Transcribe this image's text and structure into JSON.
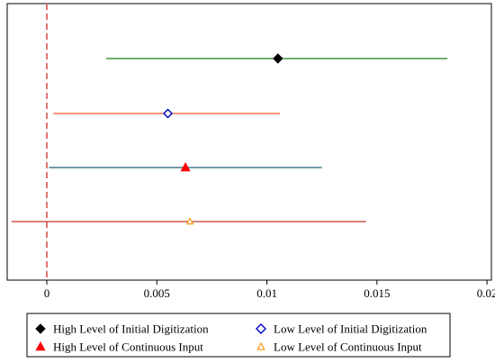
{
  "chart_data": {
    "type": "coefficient-plot",
    "title": "",
    "xlabel": "",
    "ylabel": "",
    "xlim": [
      -0.0018,
      0.0202
    ],
    "x_ticks": [
      0,
      0.005,
      0.01,
      0.015,
      0.02
    ],
    "x_tick_labels": [
      "0",
      "0.005",
      "0.01",
      "0.015",
      "0.02"
    ],
    "reference_line": {
      "x": 0,
      "style": "dashed",
      "color": "#d9534f"
    },
    "grid": false,
    "legend_position": "bottom",
    "series": [
      {
        "name": "High Level of Initial Digitization",
        "estimate": 0.0105,
        "ci": [
          0.0027,
          0.0182
        ],
        "marker": "filled-diamond",
        "marker_color": "#000000",
        "line_color": "#1a7a1a"
      },
      {
        "name": "Low Level of Initial Digitization",
        "estimate": 0.0055,
        "ci": [
          0.0003,
          0.0106
        ],
        "marker": "hollow-diamond",
        "marker_color": "#0000cc",
        "line_color": "#ee5a24"
      },
      {
        "name": "High Level of Continuous Input",
        "estimate": 0.0063,
        "ci": [
          0.0001,
          0.0125
        ],
        "marker": "filled-triangle",
        "marker_color": "#ff0000",
        "line_color": "#1f5f7a"
      },
      {
        "name": "Low Level of Continuous Input",
        "estimate": 0.0065,
        "ci": [
          -0.0016,
          0.0145
        ],
        "marker": "hollow-triangle",
        "marker_color": "#f39c12",
        "line_color": "#c0392b"
      }
    ]
  }
}
